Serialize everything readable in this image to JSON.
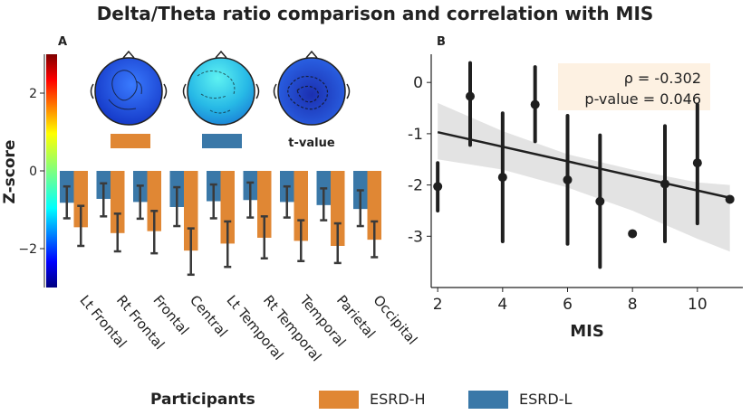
{
  "figure": {
    "title": "Delta/Theta ratio comparison and correlation with MIS",
    "panel_a_label": "A",
    "panel_b_label": "B"
  },
  "colors": {
    "esrd_h": "#E08734",
    "esrd_l": "#3A78A8",
    "error_bar": "#3a3a3a",
    "regression": "#1f1f1f",
    "ci_band": "#e3e3e3",
    "stats_box": "#fdf1e2"
  },
  "colorbar": {
    "label": "Z-score",
    "ticks": [
      2,
      0,
      -2
    ],
    "range": [
      -3,
      3
    ]
  },
  "topomaps": {
    "legend_label_tvalue": "t-value",
    "maps": [
      {
        "name": "ESRD-H",
        "group": "esrd_h"
      },
      {
        "name": "ESRD-L",
        "group": "esrd_l"
      },
      {
        "name": "t-value",
        "group": "tvalue"
      }
    ]
  },
  "chart_data": [
    {
      "type": "bar",
      "panel": "A",
      "ylabel": "Z-score",
      "ylim": [
        -3,
        3
      ],
      "categories": [
        "Lt Frontal",
        "Rt Frontal",
        "Frontal",
        "Central",
        "Lt Temporal",
        "Rt Temporal",
        "Temporal",
        "Parietal",
        "Occipital"
      ],
      "series": [
        {
          "name": "ESRD-L",
          "values": [
            -0.82,
            -0.72,
            -0.8,
            -0.93,
            -0.78,
            -0.75,
            -0.8,
            -0.88,
            -0.98
          ],
          "err_low": [
            -1.22,
            -1.17,
            -1.23,
            -1.42,
            -1.22,
            -1.2,
            -1.2,
            -1.27,
            -1.42
          ],
          "err_high": [
            -0.4,
            -0.32,
            -0.38,
            -0.42,
            -0.35,
            -0.3,
            -0.4,
            -0.45,
            -0.5
          ]
        },
        {
          "name": "ESRD-H",
          "values": [
            -1.45,
            -1.6,
            -1.55,
            -2.05,
            -1.87,
            -1.72,
            -1.8,
            -1.93,
            -1.77
          ],
          "err_low": [
            -1.93,
            -2.07,
            -2.12,
            -2.67,
            -2.47,
            -2.25,
            -2.32,
            -2.37,
            -2.22
          ],
          "err_high": [
            -0.9,
            -1.1,
            -1.03,
            -1.48,
            -1.3,
            -1.17,
            -1.27,
            -1.35,
            -1.3
          ]
        }
      ],
      "legend": {
        "title": "Participants",
        "entries": [
          "ESRD-H",
          "ESRD-L"
        ],
        "placement": "bottom"
      }
    },
    {
      "type": "scatter",
      "panel": "B",
      "xlabel": "MIS",
      "ylabel": "",
      "xlim": [
        1.8,
        11.4
      ],
      "ylim": [
        -4.0,
        0.55
      ],
      "xticks": [
        2,
        4,
        6,
        8,
        10
      ],
      "yticks": [
        0,
        -1,
        -2,
        -3
      ],
      "points": [
        {
          "x": 2,
          "y": -2.03,
          "lo": -2.5,
          "hi": -1.57
        },
        {
          "x": 3,
          "y": -0.27,
          "lo": -1.22,
          "hi": 0.38
        },
        {
          "x": 4,
          "y": -1.85,
          "lo": -3.1,
          "hi": -0.6
        },
        {
          "x": 5,
          "y": -0.43,
          "lo": -1.15,
          "hi": 0.3
        },
        {
          "x": 6,
          "y": -1.9,
          "lo": -3.15,
          "hi": -0.65
        },
        {
          "x": 7,
          "y": -2.32,
          "lo": -3.6,
          "hi": -1.03
        },
        {
          "x": 8,
          "y": -2.95,
          "lo": -2.95,
          "hi": -2.95
        },
        {
          "x": 9,
          "y": -1.98,
          "lo": -3.1,
          "hi": -0.85
        },
        {
          "x": 10,
          "y": -1.57,
          "lo": -2.75,
          "hi": -0.43
        },
        {
          "x": 11,
          "y": -2.28,
          "lo": -2.28,
          "hi": -2.28
        }
      ],
      "regression": {
        "x0": 2,
        "y0": -0.97,
        "x1": 11,
        "y1": -2.25
      },
      "ci_band": {
        "upper": [
          [
            2,
            -0.4
          ],
          [
            4,
            -0.95
          ],
          [
            6,
            -1.4
          ],
          [
            8,
            -1.7
          ],
          [
            10,
            -1.95
          ],
          [
            11,
            -2.0
          ]
        ],
        "lower": [
          [
            2,
            -1.5
          ],
          [
            4,
            -1.7
          ],
          [
            6,
            -2.05
          ],
          [
            8,
            -2.5
          ],
          [
            10,
            -3.05
          ],
          [
            11,
            -3.3
          ]
        ]
      },
      "annotation": {
        "line1": "ρ = -0.302",
        "line2": "p-value = 0.046"
      }
    }
  ]
}
